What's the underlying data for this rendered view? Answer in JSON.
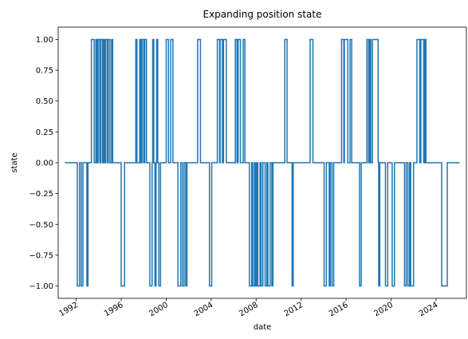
{
  "chart_data": {
    "type": "line",
    "title": "Expanding position state",
    "xlabel": "date",
    "ylabel": "state",
    "xlim": [
      1990.4,
      2026.7
    ],
    "ylim": [
      -1.1,
      1.1
    ],
    "x_ticks": [
      1992,
      1996,
      2000,
      2004,
      2008,
      2012,
      2016,
      2020,
      2024
    ],
    "x_tick_labels": [
      "1992",
      "1996",
      "2000",
      "2004",
      "2008",
      "2012",
      "2016",
      "2020",
      "2024"
    ],
    "y_ticks": [
      -1.0,
      -0.75,
      -0.5,
      -0.25,
      0.0,
      0.25,
      0.5,
      0.75,
      1.0
    ],
    "y_tick_labels": [
      "−1.00",
      "−0.75",
      "−0.50",
      "−0.25",
      "0.00",
      "0.25",
      "0.50",
      "0.75",
      "1.00"
    ],
    "grid": false,
    "line_color": "#1f77b4",
    "series": [
      {
        "step_changes": [
          [
            1991.0,
            0
          ],
          [
            1992.1,
            -1
          ],
          [
            1992.3,
            0
          ],
          [
            1992.45,
            -1
          ],
          [
            1992.6,
            0
          ],
          [
            1992.95,
            -1
          ],
          [
            1993.05,
            0
          ],
          [
            1993.35,
            1
          ],
          [
            1993.6,
            0
          ],
          [
            1993.75,
            1
          ],
          [
            1993.85,
            0
          ],
          [
            1993.95,
            1
          ],
          [
            1994.1,
            0
          ],
          [
            1994.2,
            1
          ],
          [
            1994.35,
            0
          ],
          [
            1994.45,
            1
          ],
          [
            1994.55,
            0
          ],
          [
            1994.6,
            1
          ],
          [
            1994.75,
            0
          ],
          [
            1994.85,
            1
          ],
          [
            1995.0,
            0
          ],
          [
            1995.15,
            1
          ],
          [
            1995.25,
            0
          ],
          [
            1996.0,
            -1
          ],
          [
            1996.3,
            0
          ],
          [
            1997.3,
            1
          ],
          [
            1997.4,
            0
          ],
          [
            1997.65,
            1
          ],
          [
            1997.75,
            0
          ],
          [
            1997.85,
            1
          ],
          [
            1998.0,
            0
          ],
          [
            1998.1,
            1
          ],
          [
            1998.25,
            0
          ],
          [
            1998.55,
            -1
          ],
          [
            1998.75,
            0
          ],
          [
            1998.8,
            1
          ],
          [
            1998.9,
            0
          ],
          [
            1999.0,
            -1
          ],
          [
            1999.1,
            0
          ],
          [
            1999.15,
            1
          ],
          [
            1999.25,
            0
          ],
          [
            1999.35,
            -1
          ],
          [
            1999.5,
            0
          ],
          [
            2000.0,
            1
          ],
          [
            2000.2,
            0
          ],
          [
            2000.4,
            1
          ],
          [
            2000.6,
            0
          ],
          [
            2001.05,
            -1
          ],
          [
            2001.3,
            0
          ],
          [
            2001.45,
            -1
          ],
          [
            2001.6,
            0
          ],
          [
            2001.75,
            -1
          ],
          [
            2001.85,
            0
          ],
          [
            2002.8,
            1
          ],
          [
            2003.05,
            0
          ],
          [
            2003.85,
            -1
          ],
          [
            2004.05,
            0
          ],
          [
            2004.55,
            1
          ],
          [
            2004.75,
            0
          ],
          [
            2004.8,
            1
          ],
          [
            2005.0,
            0
          ],
          [
            2005.1,
            1
          ],
          [
            2005.35,
            0
          ],
          [
            2006.15,
            1
          ],
          [
            2006.3,
            0
          ],
          [
            2006.4,
            1
          ],
          [
            2006.6,
            0
          ],
          [
            2006.85,
            1
          ],
          [
            2007.0,
            0
          ],
          [
            2007.4,
            -1
          ],
          [
            2007.6,
            0
          ],
          [
            2007.7,
            -1
          ],
          [
            2007.85,
            0
          ],
          [
            2007.95,
            -1
          ],
          [
            2008.05,
            0
          ],
          [
            2008.15,
            -1
          ],
          [
            2008.35,
            0
          ],
          [
            2008.45,
            -1
          ],
          [
            2008.6,
            0
          ],
          [
            2008.8,
            -1
          ],
          [
            2008.95,
            0
          ],
          [
            2009.05,
            -1
          ],
          [
            2009.25,
            0
          ],
          [
            2009.4,
            -1
          ],
          [
            2009.5,
            0
          ],
          [
            2010.55,
            1
          ],
          [
            2010.75,
            0
          ],
          [
            2011.2,
            -1
          ],
          [
            2011.3,
            0
          ],
          [
            2012.8,
            1
          ],
          [
            2013.05,
            0
          ],
          [
            2014.05,
            -1
          ],
          [
            2014.25,
            0
          ],
          [
            2014.5,
            -1
          ],
          [
            2014.6,
            0
          ],
          [
            2014.75,
            -1
          ],
          [
            2014.9,
            0
          ],
          [
            2015.6,
            1
          ],
          [
            2015.8,
            0
          ],
          [
            2015.85,
            1
          ],
          [
            2016.15,
            0
          ],
          [
            2016.35,
            1
          ],
          [
            2016.5,
            0
          ],
          [
            2017.2,
            -1
          ],
          [
            2017.35,
            0
          ],
          [
            2017.85,
            1
          ],
          [
            2018.0,
            0
          ],
          [
            2018.1,
            1
          ],
          [
            2018.2,
            0
          ],
          [
            2018.35,
            1
          ],
          [
            2018.85,
            0
          ],
          [
            2018.9,
            -1
          ],
          [
            2019.0,
            0
          ],
          [
            2019.5,
            -1
          ],
          [
            2019.7,
            0
          ],
          [
            2020.1,
            -1
          ],
          [
            2020.3,
            0
          ],
          [
            2021.2,
            -1
          ],
          [
            2021.35,
            0
          ],
          [
            2021.5,
            -1
          ],
          [
            2021.65,
            0
          ],
          [
            2021.75,
            -1
          ],
          [
            2022.0,
            0
          ],
          [
            2022.3,
            1
          ],
          [
            2022.55,
            0
          ],
          [
            2022.65,
            1
          ],
          [
            2022.9,
            0
          ],
          [
            2023.0,
            1
          ],
          [
            2023.1,
            0
          ],
          [
            2024.5,
            -1
          ],
          [
            2025.0,
            0
          ],
          [
            2026.1,
            0
          ]
        ]
      }
    ]
  }
}
